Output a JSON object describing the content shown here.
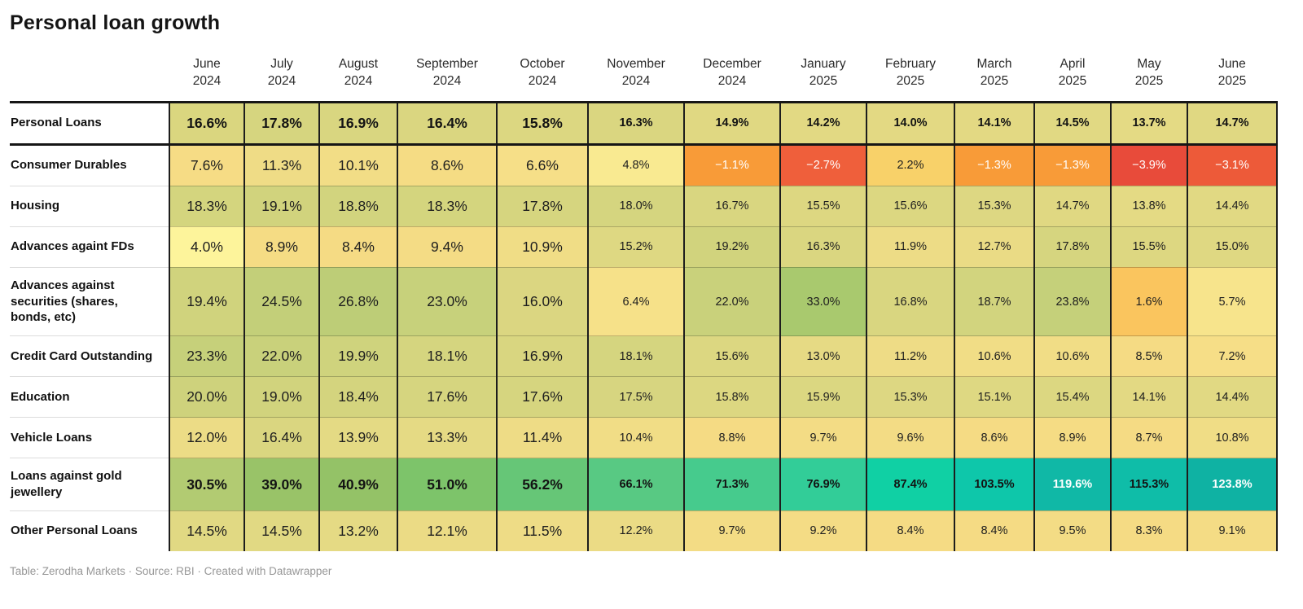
{
  "page": {
    "footer": "Table: Zerodha Markets · Source: RBI · Created with Datawrapper"
  },
  "chart_data": {
    "type": "heatmap",
    "title": "Personal loan growth",
    "unit": "%",
    "value_format": "one-decimal-percent",
    "columns": [
      "June 2024",
      "July 2024",
      "August 2024",
      "September 2024",
      "October 2024",
      "November 2024",
      "December 2024",
      "January 2025",
      "February 2025",
      "March 2025",
      "April 2025",
      "May 2025",
      "June 2025"
    ],
    "rows": [
      {
        "label": "Personal Loans",
        "bold_values": true,
        "values": [
          16.6,
          17.8,
          16.9,
          16.4,
          15.8,
          16.3,
          14.9,
          14.2,
          14.0,
          14.1,
          14.5,
          13.7,
          14.7
        ],
        "colors": [
          "#dad67f",
          "#d6d57f",
          "#d9d680",
          "#dad680",
          "#dcd781",
          "#dad680",
          "#e0d882",
          "#e2d983",
          "#e3d983",
          "#e3d983",
          "#e1d983",
          "#e4da84",
          "#e0d882"
        ],
        "white_cols": []
      },
      {
        "label": "Consumer Durables",
        "bold_values": false,
        "values": [
          7.6,
          11.3,
          10.1,
          8.6,
          6.6,
          4.8,
          -1.1,
          -2.7,
          2.2,
          -1.3,
          -1.3,
          -3.9,
          -3.1
        ],
        "colors": [
          "#f6dc85",
          "#efdc86",
          "#f2dd86",
          "#f5dc84",
          "#f6df88",
          "#f9ea91",
          "#f89b38",
          "#ef5f3b",
          "#f8d169",
          "#f89b38",
          "#f89b38",
          "#e84b3a",
          "#ed5a39"
        ],
        "white_cols": [
          6,
          7,
          9,
          10,
          11,
          12
        ]
      },
      {
        "label": "Housing",
        "bold_values": false,
        "values": [
          18.3,
          19.1,
          18.8,
          18.3,
          17.8,
          18.0,
          16.7,
          15.5,
          15.6,
          15.3,
          14.7,
          13.8,
          14.4
        ],
        "colors": [
          "#d4d57e",
          "#d1d37d",
          "#d2d47e",
          "#d4d57e",
          "#d6d57f",
          "#d5d57f",
          "#d9d680",
          "#ddd781",
          "#dcd781",
          "#ddd782",
          "#e0d882",
          "#e4da84",
          "#e1d983"
        ],
        "white_cols": []
      },
      {
        "label": "Advances againt FDs",
        "bold_values": false,
        "values": [
          4.0,
          8.9,
          8.4,
          9.4,
          10.9,
          15.2,
          19.2,
          16.3,
          11.9,
          12.7,
          17.8,
          15.5,
          15.0
        ],
        "colors": [
          "#fdf49b",
          "#f5dc84",
          "#f5db84",
          "#f4dc85",
          "#f0dd86",
          "#ded882",
          "#d1d37d",
          "#dad680",
          "#eddc86",
          "#eadb85",
          "#d6d57f",
          "#ddd781",
          "#dfd882"
        ],
        "white_cols": []
      },
      {
        "label": "Advances against securities (shares, bonds, etc)",
        "bold_values": false,
        "values": [
          19.4,
          24.5,
          26.8,
          23.0,
          16.0,
          6.4,
          22.0,
          33.0,
          16.8,
          18.7,
          23.8,
          1.6,
          5.7
        ],
        "colors": [
          "#d0d37d",
          "#c3cf79",
          "#bdcd77",
          "#c7d17b",
          "#dbd681",
          "#f6e189",
          "#c9d17b",
          "#a9c96e",
          "#d9d680",
          "#d2d47e",
          "#c5d07a",
          "#fac55e",
          "#f7e48c"
        ],
        "white_cols": []
      },
      {
        "label": "Credit Card Outstanding",
        "bold_values": false,
        "values": [
          23.3,
          22.0,
          19.9,
          18.1,
          16.9,
          18.1,
          15.6,
          13.0,
          11.2,
          10.6,
          10.6,
          8.5,
          7.2
        ],
        "colors": [
          "#c6d07a",
          "#c9d17b",
          "#cfd37d",
          "#d5d57f",
          "#d9d680",
          "#d5d57f",
          "#dcd781",
          "#e6da84",
          "#eedc86",
          "#f1dd86",
          "#f1dd86",
          "#f5db84",
          "#f6de87"
        ],
        "white_cols": []
      },
      {
        "label": "Education",
        "bold_values": false,
        "values": [
          20.0,
          19.0,
          18.4,
          17.6,
          17.6,
          17.5,
          15.8,
          15.9,
          15.3,
          15.1,
          15.4,
          14.1,
          14.4
        ],
        "colors": [
          "#ced27c",
          "#d1d37d",
          "#d4d47e",
          "#d6d57f",
          "#d6d57f",
          "#d7d580",
          "#dcd781",
          "#dbd781",
          "#ddd782",
          "#ded882",
          "#dcd781",
          "#e3d983",
          "#e1d983"
        ],
        "white_cols": []
      },
      {
        "label": "Vehicle Loans",
        "bold_values": false,
        "values": [
          12.0,
          16.4,
          13.9,
          13.3,
          11.4,
          10.4,
          8.8,
          9.7,
          9.6,
          8.6,
          8.9,
          8.7,
          10.8
        ],
        "colors": [
          "#ecdc86",
          "#dad680",
          "#e4da84",
          "#e5da84",
          "#eedc86",
          "#f1dd86",
          "#f5db84",
          "#f3dc85",
          "#f3dc85",
          "#f5db84",
          "#f5dc84",
          "#f5db84",
          "#f0dd86"
        ],
        "white_cols": []
      },
      {
        "label": "Loans against gold jewellery",
        "bold_values": true,
        "values": [
          30.5,
          39.0,
          40.9,
          51.0,
          56.2,
          66.1,
          71.3,
          76.9,
          87.4,
          103.5,
          119.6,
          115.3,
          123.8
        ],
        "colors": [
          "#b2cb72",
          "#99c368",
          "#94c267",
          "#7dc46a",
          "#66c677",
          "#58c983",
          "#46cb8d",
          "#32cd98",
          "#10d0a4",
          "#0ec7aa",
          "#10b8a6",
          "#0fbda8",
          "#0fb2a3"
        ],
        "white_cols": [
          10,
          12
        ]
      },
      {
        "label": "Other Personal Loans",
        "bold_values": false,
        "values": [
          14.5,
          14.5,
          13.2,
          12.1,
          11.5,
          12.2,
          9.7,
          9.2,
          8.4,
          8.4,
          9.5,
          8.3,
          9.1
        ],
        "colors": [
          "#e1d983",
          "#e1d983",
          "#e5da84",
          "#ebdb85",
          "#eedc86",
          "#ebdb85",
          "#f3dc85",
          "#f4dc85",
          "#f5db84",
          "#f5db84",
          "#f3dc85",
          "#f5db84",
          "#f4dc85"
        ],
        "white_cols": []
      }
    ]
  }
}
